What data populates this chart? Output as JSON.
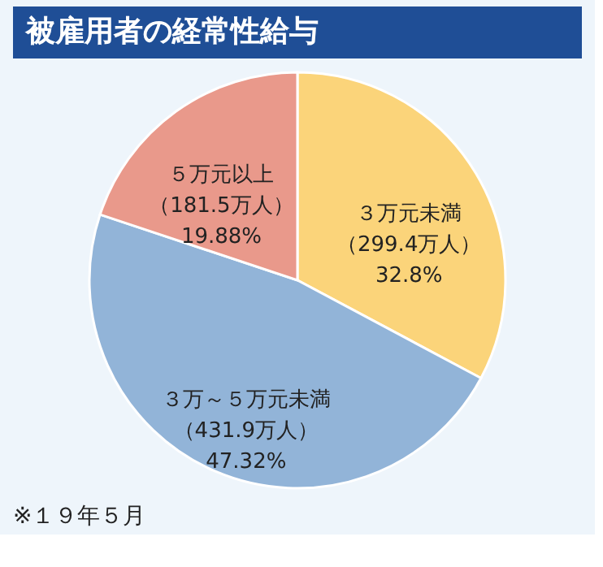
{
  "chart_data": {
    "type": "pie",
    "title": "被雇用者の経常性給与",
    "categories": [
      "３万元未満",
      "３万～５万元未満",
      "５万元以上"
    ],
    "values": [
      32.8,
      47.32,
      19.88
    ],
    "value_labels": [
      "（299.4万人）\n32.8%",
      "（431.9万人）\n47.32%",
      "（181.5万人）\n19.88%"
    ],
    "colors": [
      "#fbd47a",
      "#92b4d8",
      "#e9998b"
    ],
    "legend": false,
    "annotations": [
      "※１９年５月"
    ]
  }
}
